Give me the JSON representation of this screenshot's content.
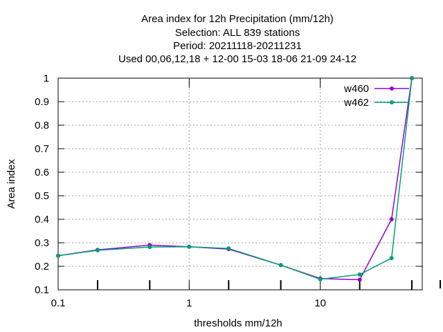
{
  "chart_data": {
    "type": "line",
    "title_lines": [
      "Area index  for 12h Precipitation (mm/12h)",
      "Selection: ALL    839 stations",
      "Period: 20211118-20211231",
      "Used  00,06,12,18  + 12-00 15-03 18-06 21-09 24-12"
    ],
    "xlabel": "thresholds mm/12h",
    "ylabel": "Area index",
    "x_scale": "log",
    "xlim": [
      0.1,
      60
    ],
    "ylim": [
      0.1,
      1.0
    ],
    "x_ticks": [
      0.1,
      1,
      10
    ],
    "x_tick_labels": [
      "0.1",
      "1",
      "10"
    ],
    "y_ticks": [
      0.1,
      0.2,
      0.3,
      0.4,
      0.5,
      0.6,
      0.7,
      0.8,
      0.9,
      1.0
    ],
    "y_tick_labels": [
      "0.1",
      "0.2",
      "0.3",
      "0.4",
      "0.5",
      "0.6",
      "0.7",
      "0.8",
      "0.9",
      "1"
    ],
    "grid": true,
    "legend_position": "top-right",
    "x": [
      0.1,
      0.2,
      0.5,
      1,
      2,
      5,
      10,
      20,
      35,
      50
    ],
    "series": [
      {
        "name": "w460",
        "color": "#9400d3",
        "values": [
          0.245,
          0.27,
          0.29,
          0.283,
          0.273,
          0.205,
          0.148,
          0.143,
          0.4,
          1.0
        ]
      },
      {
        "name": "w462",
        "color": "#009e73",
        "values": [
          0.245,
          0.268,
          0.282,
          0.283,
          0.276,
          0.205,
          0.145,
          0.165,
          0.235,
          1.0
        ]
      }
    ]
  }
}
